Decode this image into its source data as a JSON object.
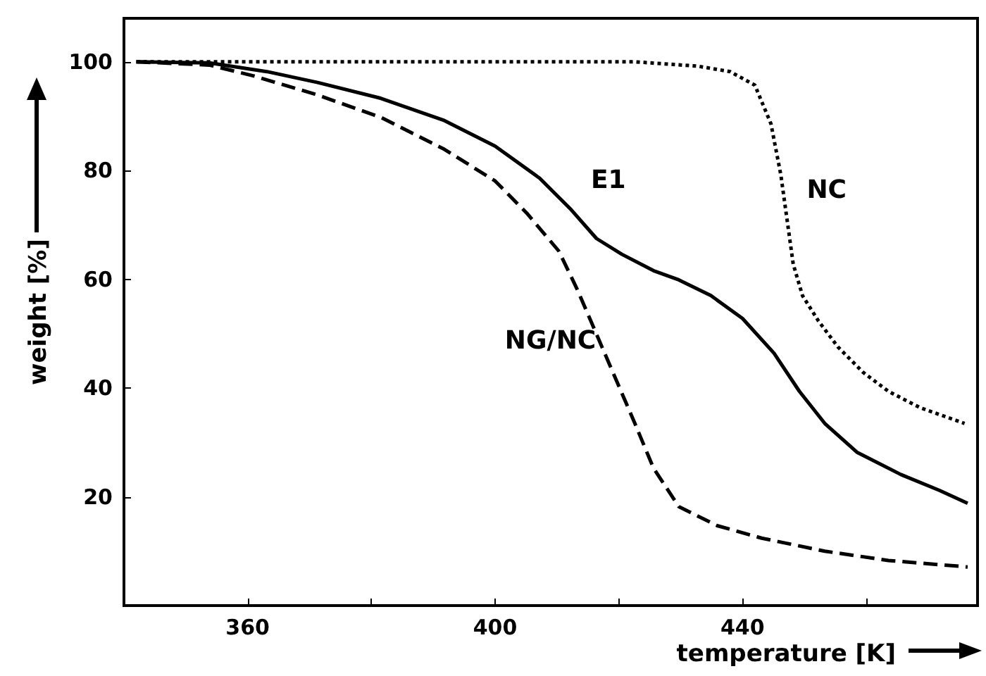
{
  "chart_data": {
    "type": "line",
    "xlabel": "temperature [K]",
    "ylabel": "weight [%]",
    "xlim": [
      340,
      478
    ],
    "ylim": [
      0,
      108
    ],
    "xticks": [
      360,
      {
        "value": 380,
        "label": null
      },
      400,
      {
        "value": 420,
        "label": null
      },
      440,
      {
        "value": 460,
        "label": null
      }
    ],
    "yticks": [
      20,
      40,
      60,
      80,
      100
    ],
    "grid": false,
    "marker": "none",
    "series": [
      {
        "color": "#000000",
        "line_style": "dotted",
        "x": [
          342,
          380,
          422.6,
          432.8,
          438,
          442,
          444.6,
          446.2,
          447.2,
          448.2,
          449.7,
          452.3,
          455.4,
          459.5,
          463.6,
          468.7,
          475.9
        ],
        "values": [
          100,
          100,
          100,
          99.2,
          98.2,
          95.7,
          88.6,
          79.2,
          71,
          62.8,
          57,
          52.3,
          47.6,
          42.9,
          39.4,
          36.4,
          33.5
        ]
      },
      {
        "color": "#000000",
        "line_style": "solid",
        "x": [
          342,
          353.8,
          363.1,
          371.3,
          381.5,
          391.8,
          400,
          407.2,
          412.3,
          416.4,
          420.5,
          425.6,
          429.7,
          434.9,
          440,
          445.1,
          449.2,
          453.3,
          458.5,
          465.6,
          471.8,
          476.4
        ],
        "values": [
          100,
          99.8,
          98.2,
          96.2,
          93.3,
          89.2,
          84.5,
          78.6,
          72.8,
          67.5,
          64.6,
          61.6,
          59.9,
          57,
          52.8,
          46.4,
          39.4,
          33.5,
          28.2,
          24.1,
          21.2,
          18.8
        ]
      },
      {
        "color": "#000000",
        "line_style": "dashed",
        "x": [
          342,
          353.8,
          361,
          371.3,
          381.5,
          391.8,
          400,
          405.1,
          410.3,
          413.3,
          416.4,
          419.5,
          422.6,
          425.6,
          429.7,
          435.9,
          443.1,
          453.3,
          463.6,
          476.4
        ],
        "values": [
          100,
          99.4,
          97.4,
          93.9,
          89.8,
          83.9,
          78.1,
          72.2,
          65.2,
          58.1,
          49.9,
          41.7,
          33.5,
          25.3,
          18.2,
          14.7,
          12.4,
          10,
          8.3,
          7.1
        ]
      }
    ],
    "annotations": [
      {
        "text": "NC",
        "x": 447.2,
        "y": 71
      },
      {
        "text": "E1",
        "x": 412.3,
        "y": 72.8
      },
      {
        "text": "NG/NC",
        "x": 419.5,
        "y": 41.7
      }
    ]
  }
}
